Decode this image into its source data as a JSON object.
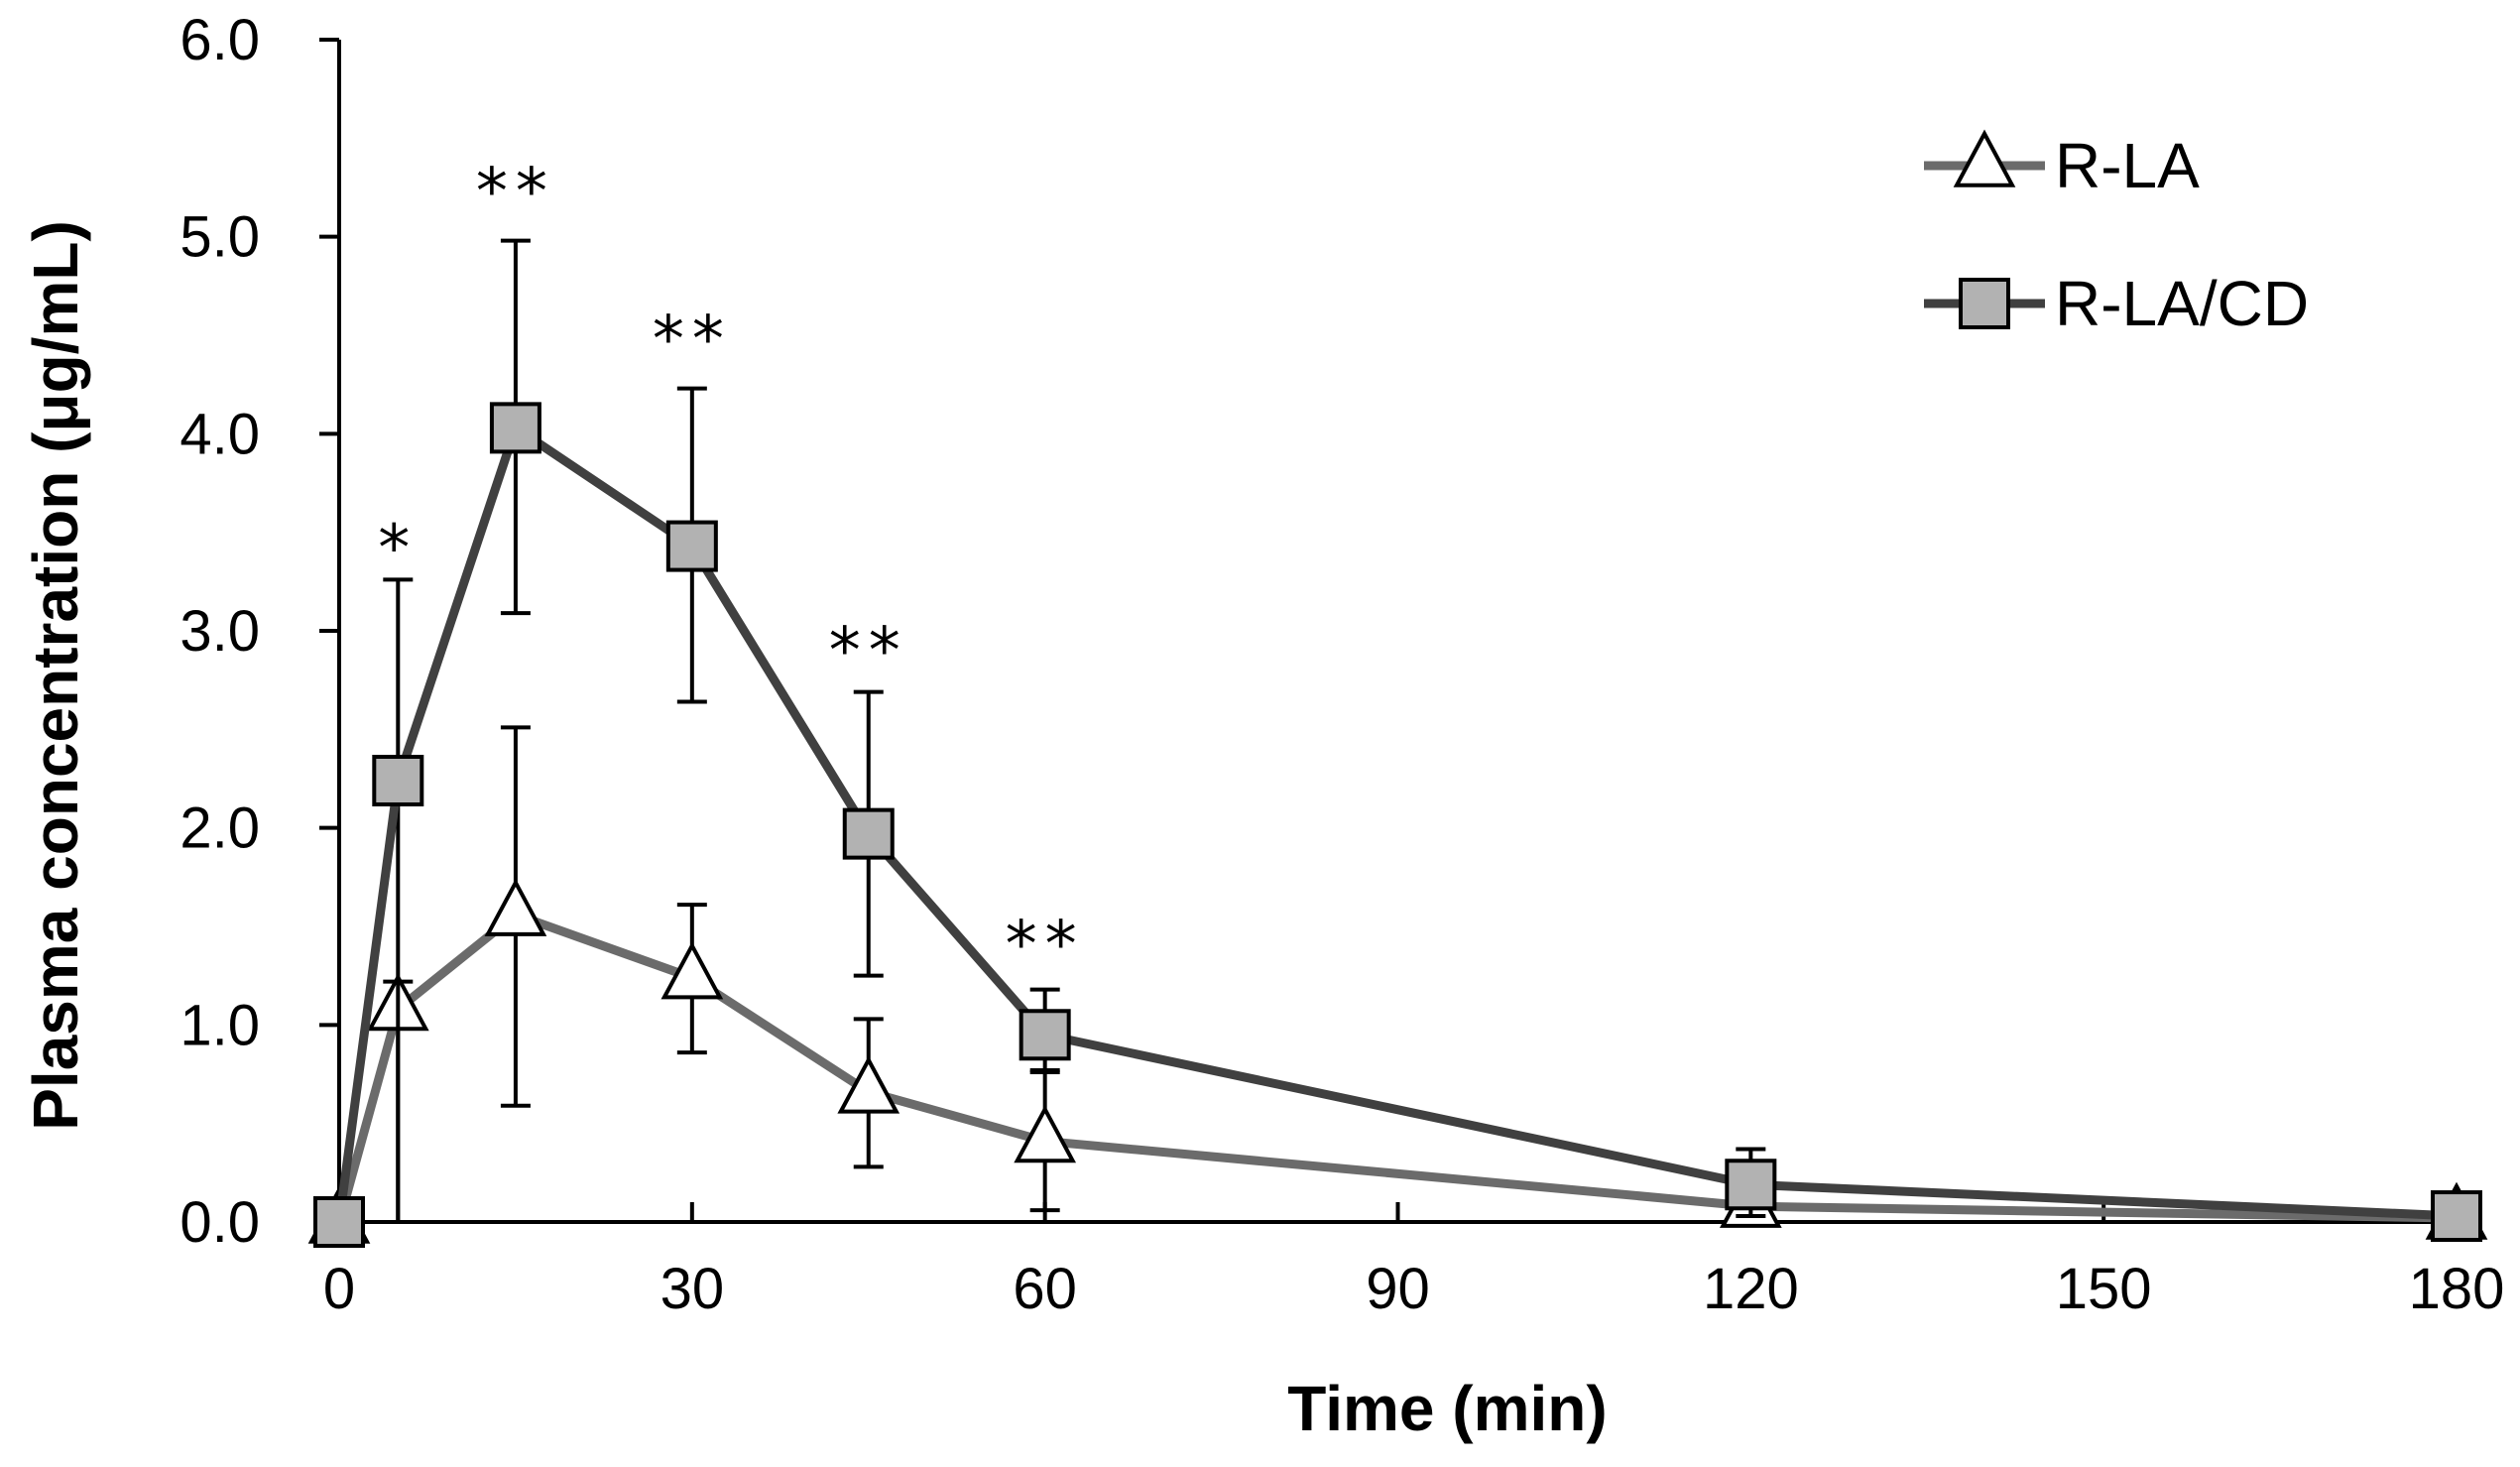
{
  "chart_data": {
    "type": "line",
    "title": "",
    "xlabel": "Time (min)",
    "ylabel": "Plasma concentration (μg/mL)",
    "xlim": [
      0,
      180
    ],
    "ylim": [
      0,
      6
    ],
    "x_ticks": [
      0,
      30,
      60,
      90,
      120,
      150,
      180
    ],
    "x_tick_labels": [
      "0",
      "30",
      "60",
      "90",
      "120",
      "150",
      "180"
    ],
    "y_ticks": [
      0,
      1,
      2,
      3,
      4,
      5,
      6
    ],
    "y_tick_labels": [
      "0.0",
      "1.0",
      "2.0",
      "3.0",
      "4.0",
      "5.0",
      "6.0"
    ],
    "grid": false,
    "legend_position": "top-right",
    "series": [
      {
        "name": "R-LA",
        "marker": "triangle",
        "line_color": "#6b6b6b",
        "marker_fill": "#ffffff",
        "x": [
          0,
          5,
          15,
          30,
          45,
          60,
          120,
          180
        ],
        "y": [
          0.0,
          1.08,
          1.56,
          1.24,
          0.66,
          0.41,
          0.08,
          0.02
        ],
        "error_upper": [
          0.0,
          1.22,
          2.51,
          1.61,
          1.03,
          0.76,
          0.12,
          0.06
        ],
        "error_lower": [
          0.0,
          0.0,
          0.59,
          0.86,
          0.28,
          0.06,
          0.04,
          0.0
        ]
      },
      {
        "name": "R-LA/CD",
        "marker": "square",
        "line_color": "#404040",
        "marker_fill": "#b2b2b2",
        "x": [
          0,
          5,
          15,
          30,
          45,
          60,
          120,
          180
        ],
        "y": [
          0.0,
          2.24,
          4.03,
          3.43,
          1.97,
          0.95,
          0.19,
          0.03
        ],
        "error_upper": [
          0.0,
          3.26,
          4.98,
          4.23,
          2.69,
          1.18,
          0.37,
          0.07
        ],
        "error_lower": [
          0.0,
          0.0,
          3.09,
          2.64,
          1.25,
          0.77,
          0.03,
          0.0
        ]
      }
    ],
    "annotations": [
      {
        "x": 5,
        "y": 3.55,
        "text": "*"
      },
      {
        "x": 15,
        "y": 5.36,
        "text": "**"
      },
      {
        "x": 30,
        "y": 4.61,
        "text": "**"
      },
      {
        "x": 45,
        "y": 3.03,
        "text": "**"
      },
      {
        "x": 60,
        "y": 1.54,
        "text": "**"
      }
    ]
  }
}
